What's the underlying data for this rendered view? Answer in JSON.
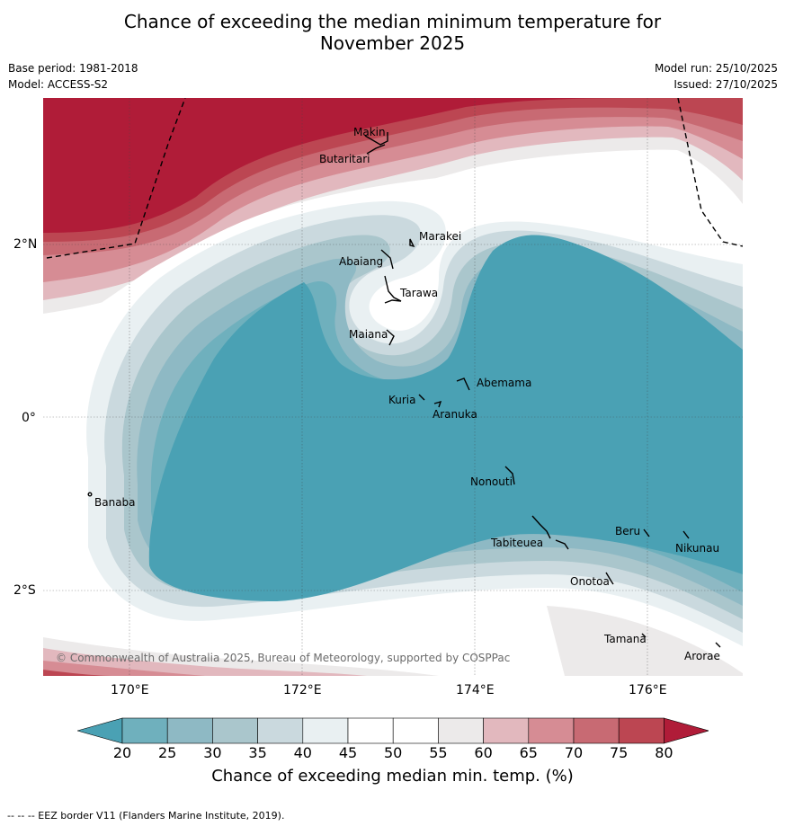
{
  "title": {
    "line1": "Chance of exceeding the median minimum temperature for",
    "line2": "November 2025"
  },
  "meta": {
    "base_period": "Base period: 1981-2018",
    "model": "Model: ACCESS-S2",
    "model_run": "Model run: 25/10/2025",
    "issued": "Issued: 27/10/2025"
  },
  "axes": {
    "lat_labels": [
      "2°N",
      "0°",
      "2°S"
    ],
    "lon_labels": [
      "170°E",
      "172°E",
      "174°E",
      "176°E"
    ]
  },
  "islands": [
    {
      "name": "Makin"
    },
    {
      "name": "Butaritari"
    },
    {
      "name": "Marakei"
    },
    {
      "name": "Abaiang"
    },
    {
      "name": "Tarawa"
    },
    {
      "name": "Maiana"
    },
    {
      "name": "Abemama"
    },
    {
      "name": "Kuria"
    },
    {
      "name": "Aranuka"
    },
    {
      "name": "Banaba"
    },
    {
      "name": "Nonouti"
    },
    {
      "name": "Beru"
    },
    {
      "name": "Tabiteuea"
    },
    {
      "name": "Nikunau"
    },
    {
      "name": "Onotoa"
    },
    {
      "name": "Tamana"
    },
    {
      "name": "Arorae"
    }
  ],
  "copyright": "© Commonwealth of Australia 2025, Bureau of Meteorology, supported by COSPPac",
  "colorbar": {
    "ticks": [
      "20",
      "25",
      "30",
      "35",
      "40",
      "45",
      "50",
      "55",
      "60",
      "65",
      "70",
      "75",
      "80"
    ],
    "title": "Chance of exceeding median min. temp. (%)",
    "colors": [
      "#4aa1b4",
      "#6fb0bd",
      "#8eb9c4",
      "#aac6cc",
      "#cad9de",
      "#e9f0f2",
      "#ffffff",
      "#ffffff",
      "#eceaea",
      "#e2b8be",
      "#d68c94",
      "#c86a73",
      "#bc4652",
      "#b01c38"
    ]
  },
  "footer": "--  --  -- EEZ border V11 (Flanders Marine Institute, 2019)."
}
